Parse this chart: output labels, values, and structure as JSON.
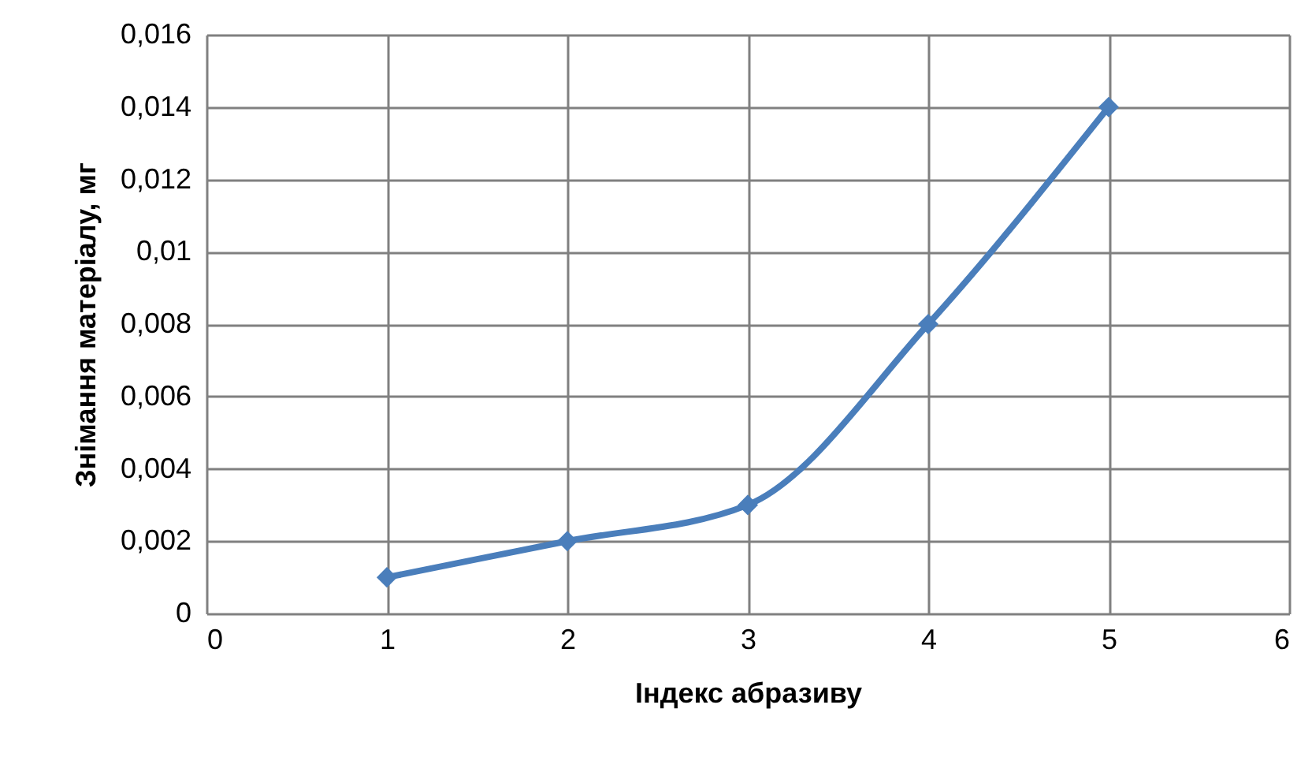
{
  "chart_data": {
    "type": "line",
    "xlabel": "Індекс абразиву",
    "ylabel": "Знімання матеріалу, мг",
    "x": [
      1,
      2,
      3,
      4,
      5
    ],
    "series": [
      {
        "color": "#4a7ebb",
        "values": [
          0.001,
          0.002,
          0.003,
          0.008,
          0.014
        ]
      }
    ],
    "xlim": [
      0,
      6
    ],
    "xticks": [
      0,
      1,
      2,
      3,
      4,
      5,
      6
    ],
    "ylim": [
      0,
      0.016
    ],
    "yticks": [
      0,
      {
        "value": 0.002,
        "label": "0,002"
      },
      {
        "value": 0.004,
        "label": "0,004"
      },
      {
        "value": 0.006,
        "label": "0,006"
      },
      {
        "value": 0.008,
        "label": "0,008"
      },
      {
        "value": 0.01,
        "label": "0,01"
      },
      {
        "value": 0.012,
        "label": "0,012"
      },
      {
        "value": 0.014,
        "label": "0,014"
      },
      {
        "value": 0.016,
        "label": "0,016"
      }
    ],
    "grid": true,
    "marker": "diamond",
    "line_style": "solid"
  }
}
